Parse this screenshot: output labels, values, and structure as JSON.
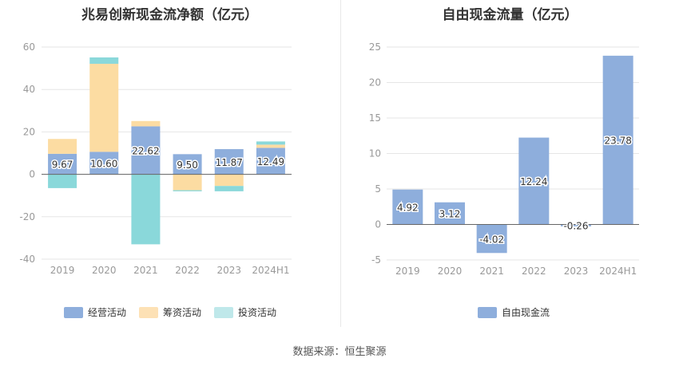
{
  "footer": {
    "source": "数据来源：恒生聚源"
  },
  "colors": {
    "operating": "#8eaedc",
    "financing": "#fcdca2",
    "investing": "#8ad8da",
    "fcf": "#8eaedc"
  },
  "legend_left": [
    {
      "label": "经营活动",
      "color": "#8eaedc"
    },
    {
      "label": "筹资活动",
      "color": "#fde1b5"
    },
    {
      "label": "投资活动",
      "color": "#bfe8ea"
    }
  ],
  "legend_right": [
    {
      "label": "自由现金流",
      "color": "#8eaedc"
    }
  ],
  "chart_data": [
    {
      "type": "bar",
      "stacked": true,
      "title": "兆易创新现金流净额（亿元）",
      "categories": [
        "2019",
        "2020",
        "2021",
        "2022",
        "2023",
        "2024H1"
      ],
      "ylim": [
        -40,
        60
      ],
      "yticks": [
        -40,
        -20,
        0,
        20,
        40,
        60
      ],
      "series": [
        {
          "name": "经营活动",
          "values": [
            9.67,
            10.6,
            22.62,
            9.5,
            11.87,
            12.49
          ],
          "labels": [
            "9.67",
            "10.60",
            "22.62",
            "9.50",
            "11.87",
            "12.49"
          ]
        },
        {
          "name": "筹资活动",
          "values": [
            7.0,
            41.5,
            2.5,
            -7.5,
            -5.5,
            1.5
          ]
        },
        {
          "name": "投资活动",
          "values": [
            -6.5,
            3.0,
            -33.0,
            -0.5,
            -2.5,
            1.5
          ]
        }
      ],
      "grid": true,
      "legend": "bottom"
    },
    {
      "type": "bar",
      "title": "自由现金流量（亿元）",
      "categories": [
        "2019",
        "2020",
        "2021",
        "2022",
        "2023",
        "2024H1"
      ],
      "ylim": [
        -5,
        25
      ],
      "yticks": [
        -5,
        0,
        5,
        10,
        15,
        20,
        25
      ],
      "series": [
        {
          "name": "自由现金流",
          "values": [
            4.92,
            3.12,
            -4.02,
            12.24,
            -0.26,
            23.78
          ],
          "labels": [
            "4.92",
            "3.12",
            "-4.02",
            "12.24",
            "-0.26",
            "23.78"
          ]
        }
      ],
      "grid": true,
      "legend": "bottom"
    }
  ]
}
